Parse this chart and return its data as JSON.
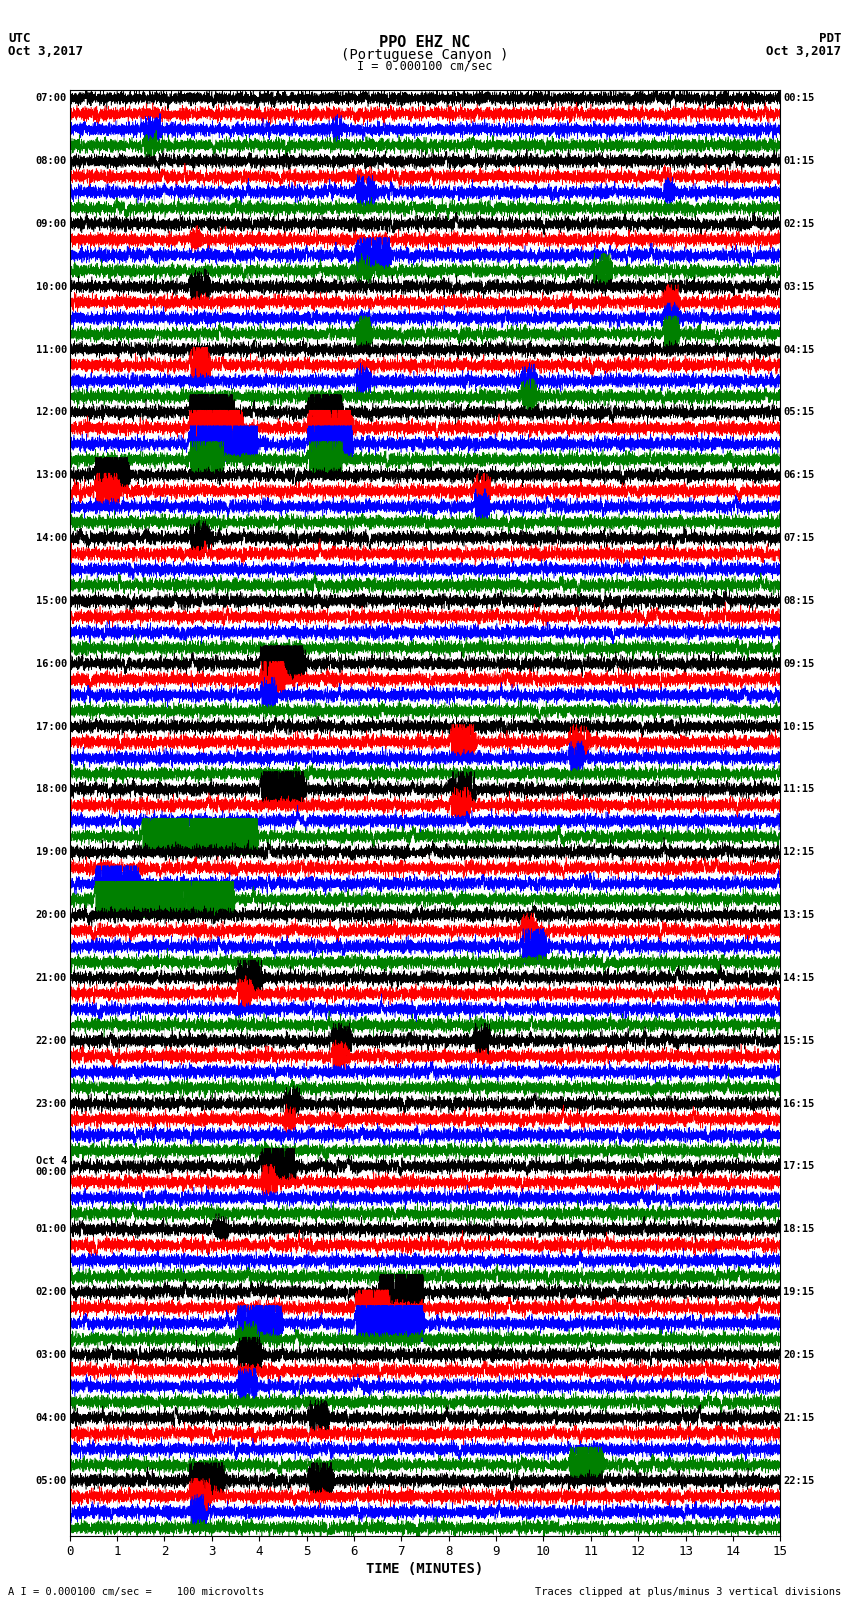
{
  "title_line1": "PPO EHZ NC",
  "title_line2": "(Portuguese Canyon )",
  "title_scale": "I = 0.000100 cm/sec",
  "left_header_line1": "UTC",
  "left_header_line2": "Oct 3,2017",
  "right_header_line1": "PDT",
  "right_header_line2": "Oct 3,2017",
  "xlabel": "TIME (MINUTES)",
  "footer_left": "A I = 0.000100 cm/sec =    100 microvolts",
  "footer_right": "Traces clipped at plus/minus 3 vertical divisions",
  "x_min": 0,
  "x_max": 15,
  "x_ticks": [
    0,
    1,
    2,
    3,
    4,
    5,
    6,
    7,
    8,
    9,
    10,
    11,
    12,
    13,
    14,
    15
  ],
  "n_hours": 23,
  "colors_cycle": [
    "black",
    "red",
    "blue",
    "green"
  ],
  "traces_per_hour": 4,
  "hour_labels_utc": [
    "07:00",
    "08:00",
    "09:00",
    "10:00",
    "11:00",
    "12:00",
    "13:00",
    "14:00",
    "15:00",
    "16:00",
    "17:00",
    "18:00",
    "19:00",
    "20:00",
    "21:00",
    "22:00",
    "23:00",
    "Oct 4\n00:00",
    "01:00",
    "02:00",
    "03:00",
    "04:00",
    "05:00"
  ],
  "hour_labels_pdt": [
    "00:15",
    "01:15",
    "02:15",
    "03:15",
    "04:15",
    "05:15",
    "06:15",
    "07:15",
    "08:15",
    "09:15",
    "10:15",
    "11:15",
    "12:15",
    "13:15",
    "14:15",
    "15:15",
    "16:15",
    "17:15",
    "18:15",
    "19:15",
    "20:15",
    "21:15",
    "22:15"
  ],
  "bg_color": "#ffffff",
  "trace_amplitude": 0.38,
  "seed": 42,
  "grid_color": "#aaaaaa",
  "grid_alpha": 0.5,
  "lw": 0.5
}
